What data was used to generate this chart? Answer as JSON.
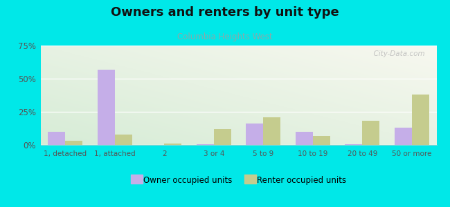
{
  "title": "Owners and renters by unit type",
  "subtitle": "Columbia Heights West",
  "categories": [
    "1, detached",
    "1, attached",
    "2",
    "3 or 4",
    "5 to 9",
    "10 to 19",
    "20 to 49",
    "50 or more"
  ],
  "owner_values": [
    10,
    57,
    0,
    0.5,
    16,
    10,
    0.5,
    13
  ],
  "renter_values": [
    3,
    8,
    1,
    12,
    21,
    7,
    18,
    38
  ],
  "owner_color": "#c5aee8",
  "renter_color": "#c5cc8e",
  "background_outer": "#00e8e8",
  "background_inner_top_left": "#d6ecd6",
  "background_inner_top_right": "#f0f0e8",
  "ylim": [
    0,
    75
  ],
  "yticks": [
    0,
    25,
    50,
    75
  ],
  "yticklabels": [
    "0%",
    "25%",
    "50%",
    "75%"
  ],
  "legend_owner": "Owner occupied units",
  "legend_renter": "Renter occupied units",
  "bar_width": 0.35,
  "watermark": "  City-Data.com",
  "title_fontsize": 13,
  "subtitle_color": "#88aaaa",
  "watermark_color": "#bbbbbb"
}
